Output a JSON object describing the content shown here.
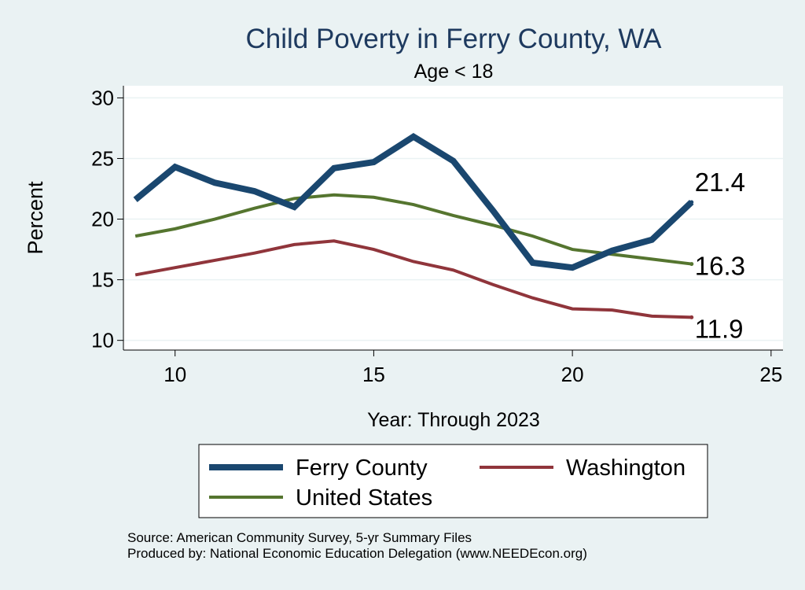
{
  "chart_data": {
    "type": "line",
    "title": "Child Poverty in Ferry County, WA",
    "subtitle": "Age < 18",
    "xlabel": "Year: Through 2023",
    "ylabel": "Percent",
    "xlim": [
      8.7,
      25.3
    ],
    "ylim": [
      9.2,
      31.0
    ],
    "xticks": [
      "10",
      "15",
      "20",
      "25"
    ],
    "yticks": [
      "10",
      "15",
      "20",
      "25",
      "30"
    ],
    "xtick_values": [
      10,
      15,
      20,
      25
    ],
    "ytick_values": [
      10,
      15,
      20,
      25,
      30
    ],
    "grid": true,
    "x": [
      9,
      10,
      11,
      12,
      13,
      14,
      15,
      16,
      17,
      18,
      19,
      20,
      21,
      22,
      23
    ],
    "series": [
      {
        "name": "Ferry County",
        "color": "#1a476f",
        "values": [
          21.6,
          24.3,
          23.0,
          22.3,
          21.0,
          24.2,
          24.7,
          26.8,
          24.8,
          20.7,
          16.4,
          16.0,
          17.4,
          18.3,
          21.4
        ],
        "end_label": "21.4"
      },
      {
        "name": "Washington",
        "color": "#90353b",
        "values": [
          15.4,
          16.0,
          16.6,
          17.2,
          17.9,
          18.2,
          17.5,
          16.5,
          15.8,
          14.6,
          13.5,
          12.6,
          12.5,
          12.0,
          11.9
        ],
        "end_label": "11.9"
      },
      {
        "name": "United States",
        "color": "#55752f",
        "values": [
          18.6,
          19.2,
          20.0,
          20.9,
          21.7,
          22.0,
          21.8,
          21.2,
          20.3,
          19.5,
          18.6,
          17.5,
          17.1,
          16.7,
          16.3
        ],
        "end_label": "16.3"
      }
    ],
    "legend": {
      "placement": "bottom",
      "entries": [
        "Ferry County",
        "Washington",
        "United States"
      ]
    },
    "source_note": "Source: American Community Survey, 5-yr Summary Files",
    "producer_note": "Produced by: National Economic Education Delegation (www.NEEDEcon.org)"
  }
}
